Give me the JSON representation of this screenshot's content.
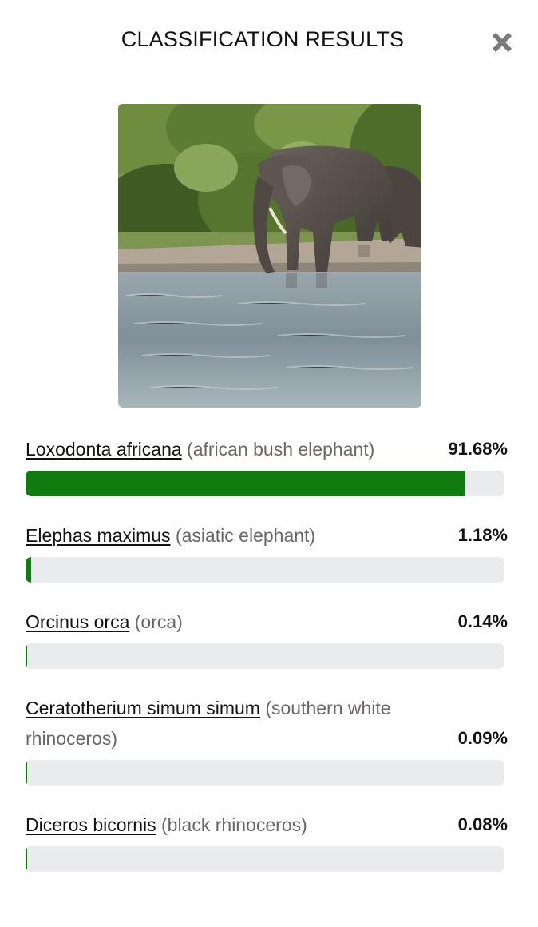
{
  "dialog": {
    "title": "CLASSIFICATION RESULTS",
    "close_icon": "close-icon"
  },
  "image": {
    "subject": "elephant-photo"
  },
  "colors": {
    "bar_fill": "#107c10",
    "bar_track": "#e9ebed",
    "common_name_text": "#6b6566"
  },
  "results": [
    {
      "scientific_name": "Loxodonta africana",
      "common_name": "(african bush elephant)",
      "percent_label": "91.68%",
      "value": 91.68
    },
    {
      "scientific_name": "Elephas maximus",
      "common_name": "(asiatic elephant)",
      "percent_label": "1.18%",
      "value": 1.18
    },
    {
      "scientific_name": "Orcinus orca",
      "common_name": "(orca)",
      "percent_label": "0.14%",
      "value": 0.14
    },
    {
      "scientific_name": "Ceratotherium simum simum",
      "common_name": "(southern white rhinoceros)",
      "percent_label": "0.09%",
      "value": 0.09
    },
    {
      "scientific_name": "Diceros bicornis",
      "common_name": "(black rhinoceros)",
      "percent_label": "0.08%",
      "value": 0.08
    }
  ]
}
